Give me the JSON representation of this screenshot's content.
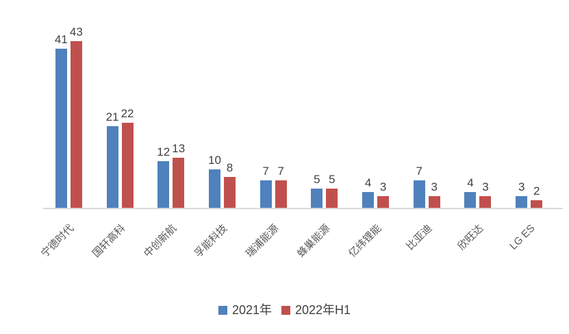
{
  "chart_data": {
    "type": "bar",
    "title": "",
    "categories": [
      "宁德时代",
      "国轩高科",
      "中创新航",
      "孚能科技",
      "瑞浦能源",
      "蜂巢能源",
      "亿纬锂能",
      "比亚迪",
      "欣旺达",
      "LG ES"
    ],
    "series": [
      {
        "name": "2021年",
        "color": "#4F81BD",
        "values": [
          41,
          21,
          12,
          10,
          7,
          5,
          4,
          7,
          4,
          3
        ]
      },
      {
        "name": "2022年H1",
        "color": "#C0504D",
        "values": [
          43,
          22,
          13,
          8,
          7,
          5,
          3,
          3,
          3,
          2
        ]
      }
    ],
    "xlabel": "",
    "ylabel": "",
    "ylim": [
      0,
      45
    ],
    "grid": false,
    "axis_line_color": "#D9D9D9",
    "data_labels_shown": true,
    "legend_position": "bottom",
    "legend": [
      "2021年",
      "2022年H1"
    ]
  }
}
